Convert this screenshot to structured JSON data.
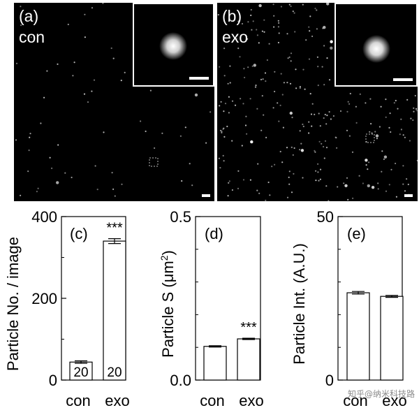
{
  "images": [
    {
      "label": "(a)",
      "condition": "con"
    },
    {
      "label": "(b)",
      "condition": "exo"
    }
  ],
  "watermark": "知乎@纳米科技路",
  "chart_data": [
    {
      "type": "bar",
      "panel_label": "(c)",
      "categories": [
        "con",
        "exo"
      ],
      "values": [
        44,
        340
      ],
      "errors": [
        3,
        6
      ],
      "ylabel": "Particle No. / image",
      "ylim": [
        0,
        400
      ],
      "yticks": [
        0,
        200,
        400
      ],
      "bar_labels": [
        "20",
        "20"
      ],
      "annotations": [
        "",
        "***"
      ],
      "grid": false
    },
    {
      "type": "bar",
      "panel_label": "(d)",
      "categories": [
        "con",
        "exo"
      ],
      "values": [
        0.103,
        0.126
      ],
      "errors": [
        0.002,
        0.002
      ],
      "ylabel": "Particle S (μm²)",
      "ylabel_base": "Particle S (μm",
      "ylabel_sup": "2",
      "ylabel_end": ")",
      "ylim": [
        0,
        0.5
      ],
      "yticks": [
        0.0,
        0.5
      ],
      "ytick_labels": [
        "0.0",
        "0.5"
      ],
      "annotations": [
        "",
        "***"
      ],
      "grid": false
    },
    {
      "type": "bar",
      "panel_label": "(e)",
      "categories": [
        "con",
        "exo"
      ],
      "values": [
        26.7,
        25.6
      ],
      "errors": [
        0.4,
        0.3
      ],
      "ylabel": "Particle Int. (A.U.)",
      "ylim": [
        0,
        50
      ],
      "yticks": [
        0,
        50
      ],
      "ytick_labels": [
        "0",
        "50"
      ],
      "annotations": [
        "",
        ""
      ],
      "grid": false
    }
  ]
}
